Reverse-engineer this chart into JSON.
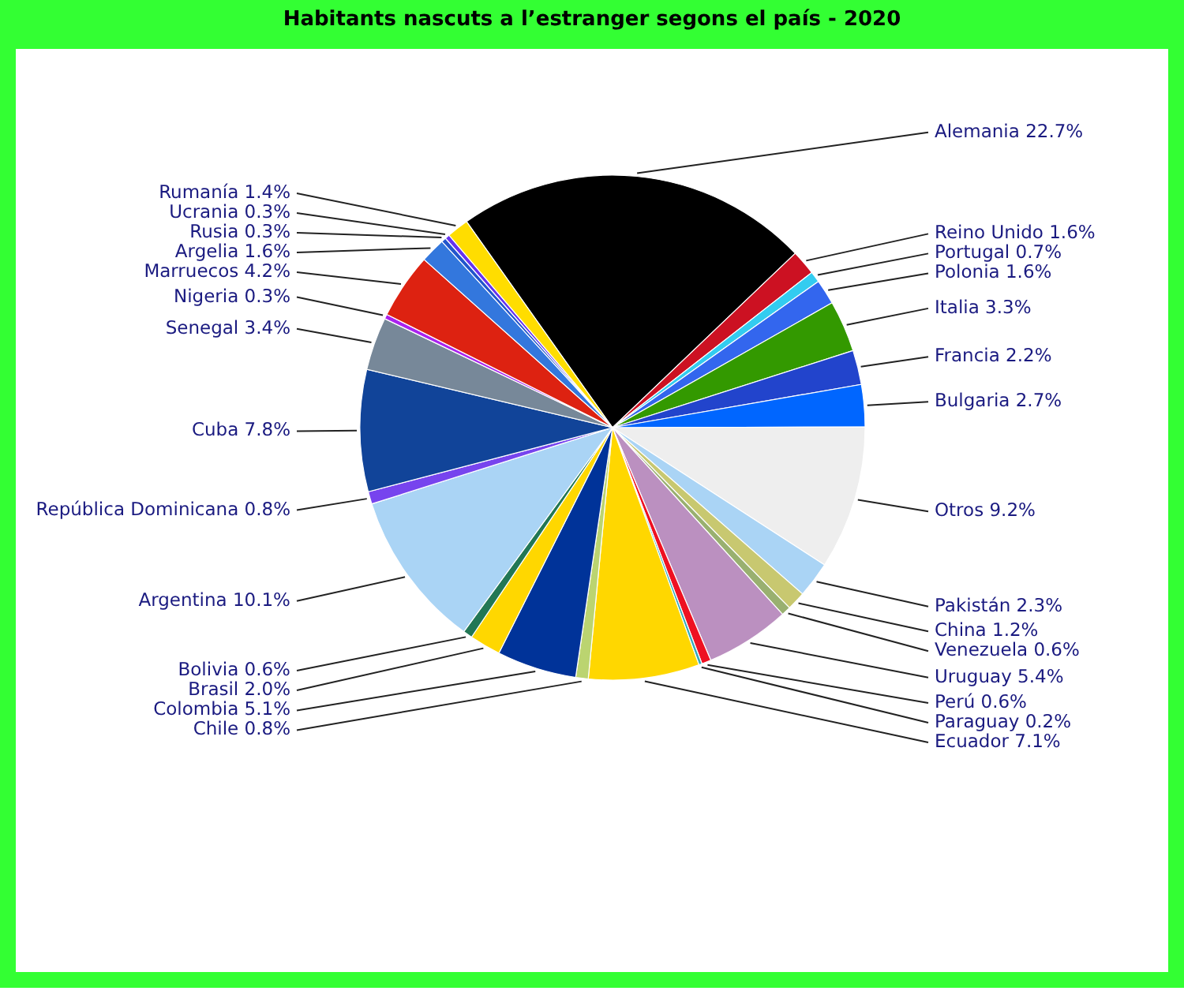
{
  "chart_data": {
    "type": "pie",
    "title": "Habitants nascuts a l’estranger segons el país - 2020",
    "categories": [
      "Alemania",
      "Reino Unido",
      "Portugal",
      "Polonia",
      "Italia",
      "Francia",
      "Bulgaria",
      "Otros",
      "Pakistán",
      "China",
      "Venezuela",
      "Uruguay",
      "Perú",
      "Paraguay",
      "Ecuador",
      "Chile",
      "Colombia",
      "Brasil",
      "Bolivia",
      "Argentina",
      "República Dominicana",
      "Cuba",
      "Senegal",
      "Nigeria",
      "Marruecos",
      "Argelia",
      "Rusia",
      "Ucrania",
      "Rumanía"
    ],
    "values": [
      22.7,
      1.6,
      0.7,
      1.6,
      3.3,
      2.2,
      2.7,
      9.2,
      2.3,
      1.2,
      0.6,
      5.4,
      0.6,
      0.2,
      7.1,
      0.8,
      5.1,
      2.0,
      0.6,
      10.1,
      0.8,
      7.8,
      3.4,
      0.3,
      4.2,
      1.6,
      0.3,
      0.3,
      1.4
    ],
    "value_labels": [
      "22.7%",
      "1.6%",
      "0.7%",
      "1.6%",
      "3.3%",
      "2.2%",
      "2.7%",
      "9.2%",
      "2.3%",
      "1.2%",
      "0.6%",
      "5.4%",
      "0.6%",
      "0.2%",
      "7.1%",
      "0.8%",
      "5.1%",
      "2.0%",
      "0.6%",
      "10.1%",
      "0.8%",
      "7.8%",
      "3.4%",
      "0.3%",
      "4.2%",
      "1.6%",
      "0.3%",
      "0.3%",
      "1.4%"
    ],
    "colors": [
      "#000000",
      "#cc1122",
      "#33ccf0",
      "#3366ee",
      "#339900",
      "#2244cc",
      "#0066ff",
      "#eeeeee",
      "#aad4f5",
      "#c8c870",
      "#99b070",
      "#bb90c0",
      "#ee1122",
      "#33aabb",
      "#ffd700",
      "#bbd470",
      "#003399",
      "#ffd700",
      "#227755",
      "#aad4f5",
      "#7744ee",
      "#114499",
      "#778899",
      "#aa22ee",
      "#dd2211",
      "#3377dd",
      "#2255cc",
      "#6633ee",
      "#ffdd00"
    ],
    "legend": false
  }
}
